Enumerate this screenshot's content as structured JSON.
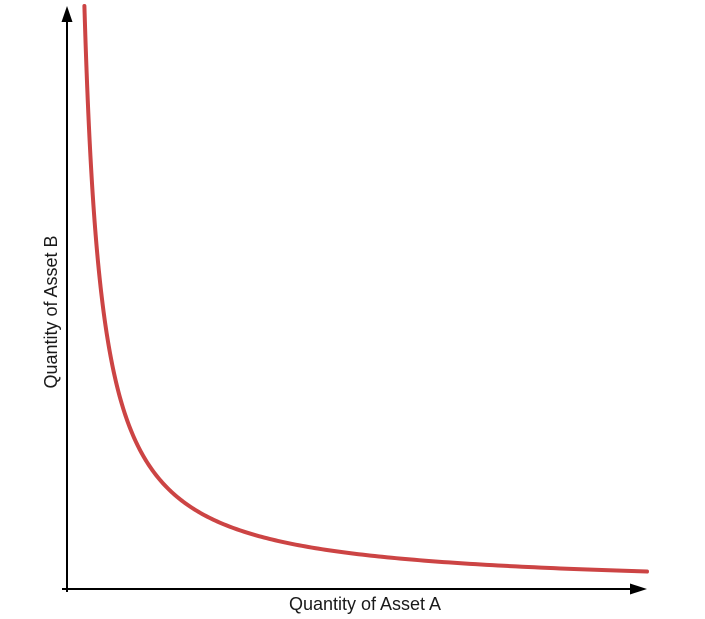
{
  "chart_data": {
    "type": "line",
    "xlabel": "Quantity of Asset A",
    "ylabel": "Quantity of Asset B",
    "ticks": "none",
    "grid": false,
    "legend": "none",
    "xlim": [
      0,
      10
    ],
    "ylim": [
      0,
      10
    ],
    "series": [
      {
        "curve": "hyperbola",
        "k": 3,
        "x": [
          0.3,
          0.4,
          0.5,
          0.75,
          1,
          1.5,
          2,
          3,
          4,
          5,
          6,
          7,
          8,
          9,
          10
        ],
        "values": [
          10,
          7.5,
          6,
          4,
          3,
          2,
          1.5,
          1,
          0.75,
          0.6,
          0.5,
          0.43,
          0.375,
          0.333,
          0.3
        ],
        "color": "#cc4444"
      }
    ]
  }
}
